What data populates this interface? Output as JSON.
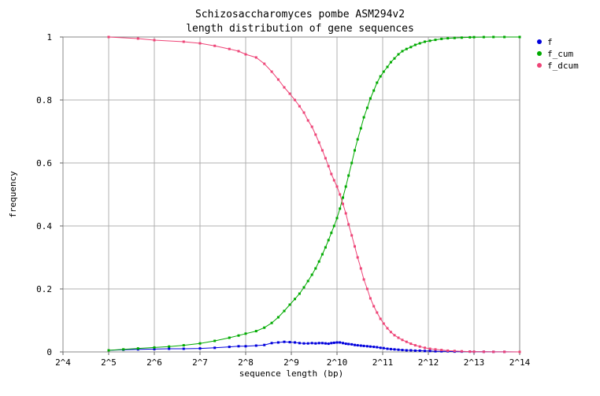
{
  "chart_data": {
    "type": "line",
    "title_line1": "Schizosaccharomyces pombe ASM294v2",
    "title_line2": "length distribution of gene sequences",
    "xlabel": "sequence length (bp)",
    "ylabel": "frequency",
    "x_scale": "log2",
    "xlim": [
      16,
      16384
    ],
    "ylim": [
      0,
      1
    ],
    "grid": true,
    "legend_position": "right",
    "x_ticks": [
      {
        "value": 16,
        "label": "2^4"
      },
      {
        "value": 32,
        "label": "2^5"
      },
      {
        "value": 64,
        "label": "2^6"
      },
      {
        "value": 128,
        "label": "2^7"
      },
      {
        "value": 256,
        "label": "2^8"
      },
      {
        "value": 512,
        "label": "2^9"
      },
      {
        "value": 1024,
        "label": "2^10"
      },
      {
        "value": 2048,
        "label": "2^11"
      },
      {
        "value": 4096,
        "label": "2^12"
      },
      {
        "value": 8192,
        "label": "2^13"
      },
      {
        "value": 16384,
        "label": "2^14"
      }
    ],
    "y_ticks": [
      {
        "value": 0,
        "label": "0"
      },
      {
        "value": 0.2,
        "label": "0.2"
      },
      {
        "value": 0.4,
        "label": "0.4"
      },
      {
        "value": 0.6,
        "label": "0.6"
      },
      {
        "value": 0.8,
        "label": "0.8"
      },
      {
        "value": 1,
        "label": "1"
      }
    ],
    "series": [
      {
        "name": "f",
        "color": "#0000dd",
        "points": [
          [
            32,
            0.005
          ],
          [
            40,
            0.007
          ],
          [
            50,
            0.008
          ],
          [
            64,
            0.009
          ],
          [
            80,
            0.01
          ],
          [
            100,
            0.01
          ],
          [
            128,
            0.011
          ],
          [
            160,
            0.013
          ],
          [
            200,
            0.016
          ],
          [
            230,
            0.018
          ],
          [
            256,
            0.018
          ],
          [
            300,
            0.02
          ],
          [
            340,
            0.022
          ],
          [
            380,
            0.028
          ],
          [
            420,
            0.03
          ],
          [
            460,
            0.032
          ],
          [
            500,
            0.031
          ],
          [
            540,
            0.03
          ],
          [
            580,
            0.028
          ],
          [
            620,
            0.027
          ],
          [
            660,
            0.027
          ],
          [
            700,
            0.028
          ],
          [
            740,
            0.027
          ],
          [
            780,
            0.028
          ],
          [
            820,
            0.028
          ],
          [
            860,
            0.027
          ],
          [
            900,
            0.026
          ],
          [
            940,
            0.028
          ],
          [
            980,
            0.029
          ],
          [
            1024,
            0.03
          ],
          [
            1070,
            0.03
          ],
          [
            1120,
            0.028
          ],
          [
            1170,
            0.026
          ],
          [
            1220,
            0.025
          ],
          [
            1280,
            0.024
          ],
          [
            1340,
            0.022
          ],
          [
            1400,
            0.021
          ],
          [
            1470,
            0.02
          ],
          [
            1540,
            0.019
          ],
          [
            1620,
            0.018
          ],
          [
            1700,
            0.017
          ],
          [
            1790,
            0.016
          ],
          [
            1880,
            0.015
          ],
          [
            1980,
            0.013
          ],
          [
            2080,
            0.012
          ],
          [
            2200,
            0.01
          ],
          [
            2320,
            0.009
          ],
          [
            2450,
            0.008
          ],
          [
            2600,
            0.007
          ],
          [
            2760,
            0.006
          ],
          [
            2940,
            0.005
          ],
          [
            3140,
            0.005
          ],
          [
            3360,
            0.004
          ],
          [
            3600,
            0.004
          ],
          [
            3880,
            0.003
          ],
          [
            4200,
            0.003
          ],
          [
            4560,
            0.002
          ],
          [
            5000,
            0.002
          ],
          [
            5500,
            0.002
          ],
          [
            6100,
            0.001
          ],
          [
            6800,
            0.001
          ],
          [
            7700,
            0.001
          ],
          [
            8192,
            0.0005
          ],
          [
            9500,
            0.0005
          ],
          [
            11000,
            0.0003
          ],
          [
            13000,
            0.0002
          ],
          [
            16384,
            0.0001
          ]
        ]
      },
      {
        "name": "f_cum",
        "color": "#00aa00",
        "points": [
          [
            32,
            0.005
          ],
          [
            40,
            0.008
          ],
          [
            50,
            0.011
          ],
          [
            64,
            0.014
          ],
          [
            80,
            0.017
          ],
          [
            100,
            0.021
          ],
          [
            128,
            0.027
          ],
          [
            160,
            0.035
          ],
          [
            200,
            0.045
          ],
          [
            230,
            0.052
          ],
          [
            256,
            0.058
          ],
          [
            300,
            0.066
          ],
          [
            340,
            0.077
          ],
          [
            380,
            0.092
          ],
          [
            420,
            0.11
          ],
          [
            460,
            0.13
          ],
          [
            500,
            0.15
          ],
          [
            540,
            0.168
          ],
          [
            580,
            0.185
          ],
          [
            620,
            0.205
          ],
          [
            660,
            0.225
          ],
          [
            700,
            0.245
          ],
          [
            740,
            0.265
          ],
          [
            780,
            0.287
          ],
          [
            820,
            0.31
          ],
          [
            860,
            0.332
          ],
          [
            900,
            0.355
          ],
          [
            940,
            0.378
          ],
          [
            980,
            0.4
          ],
          [
            1024,
            0.425
          ],
          [
            1070,
            0.455
          ],
          [
            1120,
            0.49
          ],
          [
            1170,
            0.525
          ],
          [
            1220,
            0.56
          ],
          [
            1280,
            0.6
          ],
          [
            1340,
            0.64
          ],
          [
            1400,
            0.675
          ],
          [
            1470,
            0.71
          ],
          [
            1540,
            0.745
          ],
          [
            1620,
            0.775
          ],
          [
            1700,
            0.805
          ],
          [
            1790,
            0.83
          ],
          [
            1880,
            0.855
          ],
          [
            1980,
            0.875
          ],
          [
            2080,
            0.89
          ],
          [
            2200,
            0.905
          ],
          [
            2320,
            0.92
          ],
          [
            2450,
            0.932
          ],
          [
            2600,
            0.945
          ],
          [
            2760,
            0.955
          ],
          [
            2940,
            0.962
          ],
          [
            3140,
            0.968
          ],
          [
            3360,
            0.975
          ],
          [
            3600,
            0.98
          ],
          [
            3880,
            0.985
          ],
          [
            4200,
            0.988
          ],
          [
            4560,
            0.991
          ],
          [
            5000,
            0.994
          ],
          [
            5500,
            0.996
          ],
          [
            6100,
            0.997
          ],
          [
            6800,
            0.998
          ],
          [
            7700,
            0.999
          ],
          [
            8192,
            0.9995
          ],
          [
            9500,
            0.9997
          ],
          [
            11000,
            0.9999
          ],
          [
            13000,
            1
          ],
          [
            16384,
            1
          ]
        ]
      },
      {
        "name": "f_dcum",
        "color": "#ee4477",
        "points": [
          [
            32,
            1
          ],
          [
            50,
            0.995
          ],
          [
            64,
            0.99
          ],
          [
            100,
            0.985
          ],
          [
            128,
            0.98
          ],
          [
            160,
            0.972
          ],
          [
            200,
            0.962
          ],
          [
            230,
            0.955
          ],
          [
            256,
            0.945
          ],
          [
            300,
            0.935
          ],
          [
            340,
            0.915
          ],
          [
            380,
            0.89
          ],
          [
            420,
            0.865
          ],
          [
            460,
            0.84
          ],
          [
            500,
            0.82
          ],
          [
            540,
            0.8
          ],
          [
            580,
            0.78
          ],
          [
            620,
            0.76
          ],
          [
            660,
            0.735
          ],
          [
            700,
            0.715
          ],
          [
            740,
            0.69
          ],
          [
            780,
            0.665
          ],
          [
            820,
            0.64
          ],
          [
            860,
            0.615
          ],
          [
            900,
            0.59
          ],
          [
            940,
            0.565
          ],
          [
            980,
            0.545
          ],
          [
            1024,
            0.525
          ],
          [
            1070,
            0.5
          ],
          [
            1120,
            0.47
          ],
          [
            1170,
            0.44
          ],
          [
            1220,
            0.405
          ],
          [
            1280,
            0.37
          ],
          [
            1340,
            0.335
          ],
          [
            1400,
            0.3
          ],
          [
            1470,
            0.265
          ],
          [
            1540,
            0.23
          ],
          [
            1620,
            0.2
          ],
          [
            1700,
            0.17
          ],
          [
            1790,
            0.145
          ],
          [
            1880,
            0.125
          ],
          [
            1980,
            0.105
          ],
          [
            2080,
            0.09
          ],
          [
            2200,
            0.075
          ],
          [
            2320,
            0.063
          ],
          [
            2450,
            0.053
          ],
          [
            2600,
            0.045
          ],
          [
            2760,
            0.038
          ],
          [
            2940,
            0.032
          ],
          [
            3140,
            0.026
          ],
          [
            3360,
            0.021
          ],
          [
            3600,
            0.017
          ],
          [
            3880,
            0.013
          ],
          [
            4200,
            0.01
          ],
          [
            4560,
            0.008
          ],
          [
            5000,
            0.006
          ],
          [
            5500,
            0.004
          ],
          [
            6100,
            0.003
          ],
          [
            6800,
            0.002
          ],
          [
            7700,
            0.001
          ],
          [
            8192,
            0.0008
          ],
          [
            9500,
            0.0005
          ],
          [
            11000,
            0.0003
          ],
          [
            13000,
            0.0002
          ],
          [
            16384,
            0.0001
          ]
        ]
      }
    ]
  }
}
